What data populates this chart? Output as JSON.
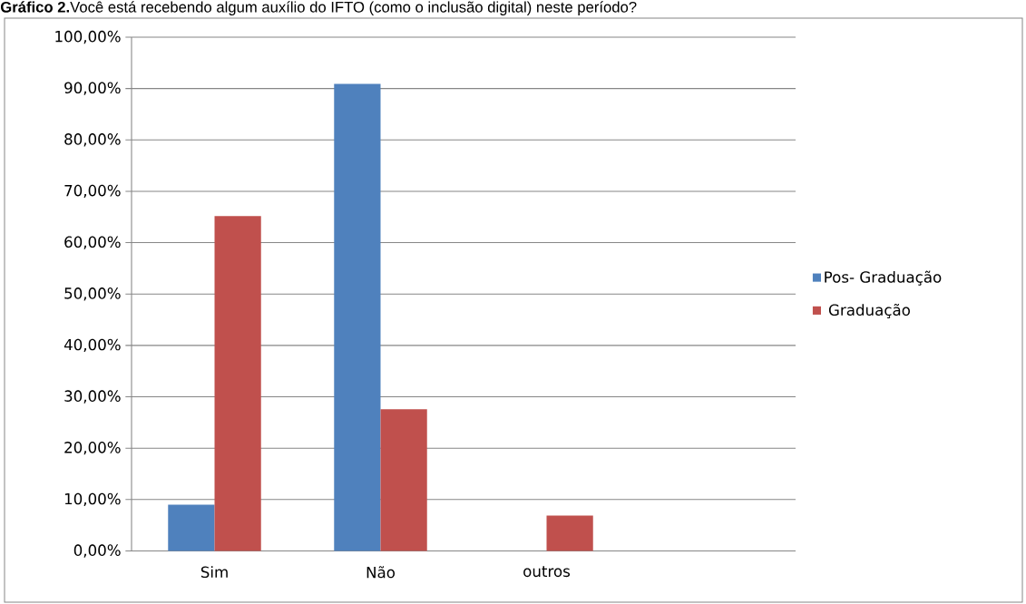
{
  "chart_data": {
    "type": "bar",
    "title": "**Gráfico 2.**Você está recebendo algum auxílio do IFTO (como o inclusão digital) neste período?",
    "categories": [
      "Sim",
      "Não",
      "outros",
      null
    ],
    "series": [
      {
        "name": "Pos- Graduação",
        "color": "#4f81bd",
        "values": [
          9.0,
          90.9,
          null,
          null
        ]
      },
      {
        "name": " Graduação",
        "color": "#c0504d",
        "values": [
          65.2,
          27.6,
          6.9,
          null
        ]
      }
    ],
    "ylim": [
      0,
      100
    ],
    "yticks": [
      {
        "value": 0,
        "label": "0,00%"
      },
      {
        "value": 10,
        "label": "10,00%"
      },
      {
        "value": 20,
        "label": "20,00%"
      },
      {
        "value": 30,
        "label": "30,00%"
      },
      {
        "value": 40,
        "label": "40,00%"
      },
      {
        "value": 50,
        "label": "50,00%"
      },
      {
        "value": 60,
        "label": "60,00%"
      },
      {
        "value": 70,
        "label": "70,00%"
      },
      {
        "value": 80,
        "label": "80,00%"
      },
      {
        "value": 90,
        "label": "90,00%"
      },
      {
        "value": 100,
        "label": "100,00%"
      }
    ],
    "grid": "y",
    "legend": "right"
  }
}
